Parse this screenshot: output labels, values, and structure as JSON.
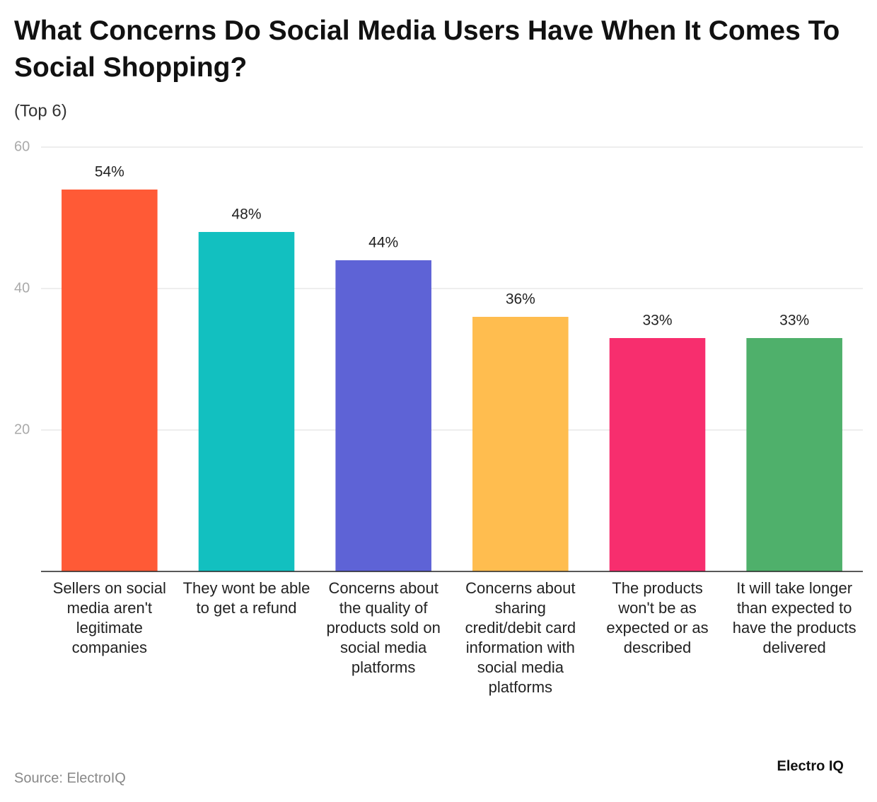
{
  "chart_data": {
    "type": "bar",
    "title": "What Concerns Do Social Media Users Have When It Comes To Social Shopping?",
    "subtitle": "(Top 6)",
    "categories": [
      "Sellers on social media aren't legitimate companies",
      "They wont be able to get a refund",
      "Concerns about the quality of products sold on social media platforms",
      "Concerns about sharing credit/debit card information with social media platforms",
      "The products won't be as expected or as described",
      "It will take longer than expected to have the products delivered"
    ],
    "values": [
      54,
      48,
      44,
      36,
      33,
      33
    ],
    "value_labels": [
      "54%",
      "48%",
      "44%",
      "36%",
      "33%",
      "33%"
    ],
    "colors": [
      "#ff5a36",
      "#12c0c0",
      "#5e63d6",
      "#ffbd4f",
      "#f72e6e",
      "#4fb06b"
    ],
    "ylim": [
      0,
      60
    ],
    "yticks": [
      20,
      40,
      60
    ],
    "grid": true,
    "source": "Source: ElectroIQ",
    "brand": "Electro IQ"
  }
}
